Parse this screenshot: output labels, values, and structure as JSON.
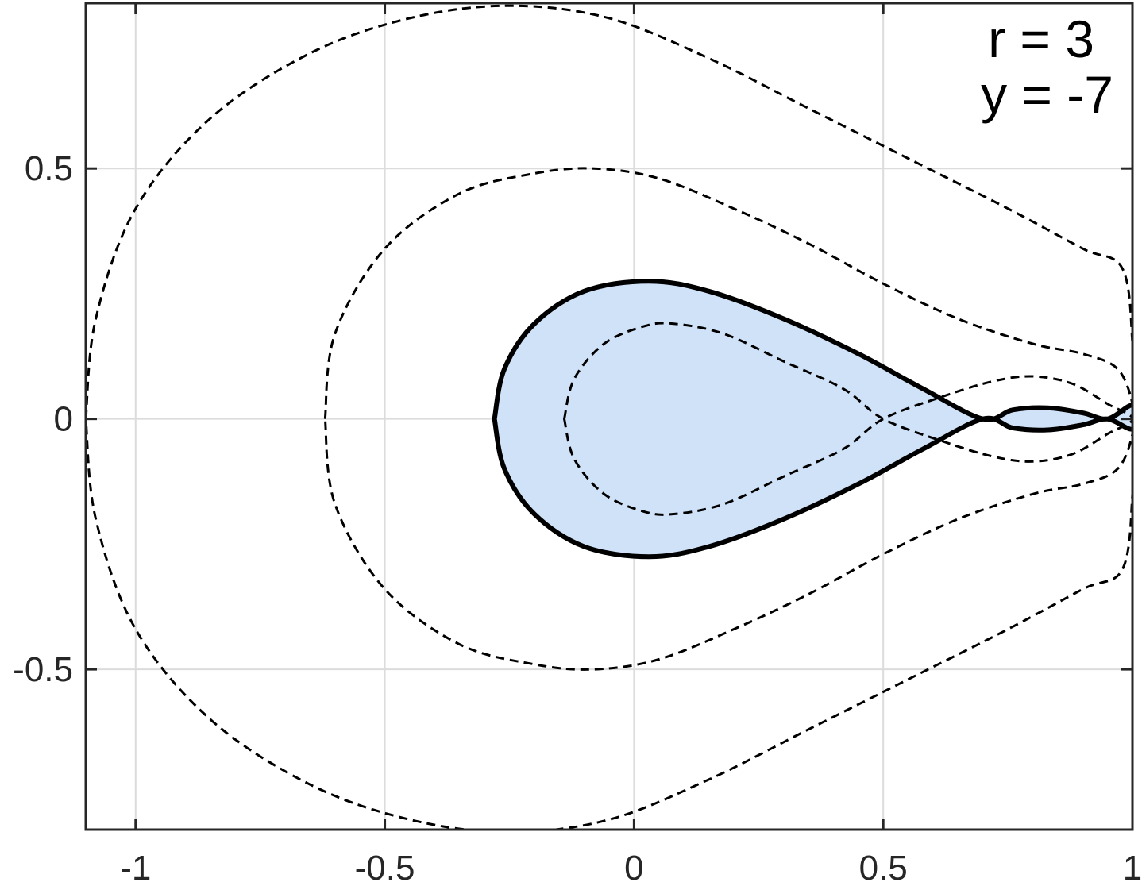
{
  "chart_data": {
    "type": "line",
    "title": "",
    "xlabel": "",
    "ylabel": "",
    "xlim": [
      -1.1,
      1.0
    ],
    "ylim": [
      -0.82,
      0.83
    ],
    "grid": true,
    "x_ticks": [
      -1,
      -0.5,
      0,
      0.5,
      1
    ],
    "x_tick_labels": [
      "-1",
      "-0.5",
      "0",
      "0.5",
      "1"
    ],
    "y_ticks": [
      0.5,
      0,
      -0.5
    ],
    "y_tick_labels": [
      "0.5",
      "0",
      "-0.5"
    ],
    "annotations": [
      "r = 3",
      "y = -7"
    ],
    "colors": {
      "fill": "#cfe2f8",
      "solid_line": "#000000",
      "dashed_line": "#000000",
      "grid": "#dcdcdc",
      "axes": "#262626"
    },
    "series": [
      {
        "style": "solid-filled",
        "points": [
          [
            -0.28,
            0.0
          ],
          [
            -0.26,
            0.1
          ],
          [
            -0.2,
            0.19
          ],
          [
            -0.1,
            0.255
          ],
          [
            0.03,
            0.275
          ],
          [
            0.15,
            0.255
          ],
          [
            0.3,
            0.2
          ],
          [
            0.45,
            0.13
          ],
          [
            0.58,
            0.06
          ],
          [
            0.7,
            0.0
          ],
          [
            0.76,
            0.018
          ],
          [
            0.83,
            0.022
          ],
          [
            0.9,
            0.012
          ],
          [
            0.95,
            0.0
          ],
          [
            1.0,
            0.027
          ],
          [
            1.0,
            -0.02
          ],
          [
            0.95,
            0.0
          ],
          [
            0.9,
            -0.012
          ],
          [
            0.83,
            -0.022
          ],
          [
            0.76,
            -0.018
          ],
          [
            0.7,
            0.0
          ],
          [
            0.58,
            -0.06
          ],
          [
            0.45,
            -0.13
          ],
          [
            0.3,
            -0.2
          ],
          [
            0.15,
            -0.255
          ],
          [
            0.03,
            -0.275
          ],
          [
            -0.1,
            -0.255
          ],
          [
            -0.2,
            -0.19
          ],
          [
            -0.26,
            -0.1
          ],
          [
            -0.28,
            0.0
          ]
        ]
      },
      {
        "style": "dashed",
        "points": [
          [
            -0.14,
            0.0
          ],
          [
            -0.12,
            0.08
          ],
          [
            -0.06,
            0.15
          ],
          [
            0.02,
            0.185
          ],
          [
            0.08,
            0.19
          ],
          [
            0.18,
            0.17
          ],
          [
            0.3,
            0.115
          ],
          [
            0.42,
            0.06
          ],
          [
            0.5,
            0.0
          ],
          [
            0.62,
            -0.045
          ],
          [
            0.72,
            -0.075
          ],
          [
            0.8,
            -0.085
          ],
          [
            0.88,
            -0.07
          ],
          [
            0.95,
            -0.03
          ],
          [
            1.0,
            0.0
          ],
          [
            0.95,
            0.03
          ],
          [
            0.88,
            0.07
          ],
          [
            0.8,
            0.085
          ],
          [
            0.72,
            0.075
          ],
          [
            0.62,
            0.045
          ],
          [
            0.5,
            0.0
          ],
          [
            0.42,
            -0.06
          ],
          [
            0.3,
            -0.115
          ],
          [
            0.18,
            -0.17
          ],
          [
            0.08,
            -0.19
          ],
          [
            0.02,
            -0.185
          ],
          [
            -0.06,
            -0.15
          ],
          [
            -0.12,
            -0.08
          ],
          [
            -0.14,
            0.0
          ]
        ]
      },
      {
        "style": "dashed",
        "points": [
          [
            -0.62,
            0.0
          ],
          [
            -0.6,
            0.17
          ],
          [
            -0.5,
            0.34
          ],
          [
            -0.35,
            0.45
          ],
          [
            -0.2,
            0.49
          ],
          [
            -0.08,
            0.5
          ],
          [
            0.05,
            0.48
          ],
          [
            0.2,
            0.42
          ],
          [
            0.35,
            0.35
          ],
          [
            0.5,
            0.27
          ],
          [
            0.65,
            0.2
          ],
          [
            0.8,
            0.15
          ],
          [
            0.9,
            0.13
          ],
          [
            0.97,
            0.1
          ],
          [
            1.0,
            0.03
          ],
          [
            1.0,
            -0.03
          ],
          [
            0.97,
            -0.1
          ],
          [
            0.9,
            -0.13
          ],
          [
            0.8,
            -0.15
          ],
          [
            0.65,
            -0.2
          ],
          [
            0.5,
            -0.27
          ],
          [
            0.35,
            -0.35
          ],
          [
            0.2,
            -0.42
          ],
          [
            0.05,
            -0.48
          ],
          [
            -0.08,
            -0.5
          ],
          [
            -0.2,
            -0.49
          ],
          [
            -0.35,
            -0.45
          ],
          [
            -0.5,
            -0.34
          ],
          [
            -0.6,
            -0.17
          ],
          [
            -0.62,
            0.0
          ]
        ]
      },
      {
        "style": "dashed",
        "points": [
          [
            -1.1,
            0.0
          ],
          [
            -1.08,
            0.2
          ],
          [
            -1.0,
            0.42
          ],
          [
            -0.85,
            0.6
          ],
          [
            -0.65,
            0.73
          ],
          [
            -0.45,
            0.8
          ],
          [
            -0.25,
            0.825
          ],
          [
            -0.05,
            0.8
          ],
          [
            0.15,
            0.72
          ],
          [
            0.35,
            0.62
          ],
          [
            0.55,
            0.52
          ],
          [
            0.75,
            0.42
          ],
          [
            0.9,
            0.34
          ],
          [
            0.98,
            0.3
          ],
          [
            1.0,
            0.15
          ],
          [
            1.0,
            0.02
          ],
          [
            1.0,
            -0.02
          ],
          [
            1.0,
            -0.15
          ],
          [
            0.98,
            -0.3
          ],
          [
            0.9,
            -0.34
          ],
          [
            0.75,
            -0.42
          ],
          [
            0.55,
            -0.52
          ],
          [
            0.35,
            -0.62
          ],
          [
            0.15,
            -0.72
          ],
          [
            -0.05,
            -0.8
          ],
          [
            -0.25,
            -0.825
          ],
          [
            -0.45,
            -0.8
          ],
          [
            -0.65,
            -0.73
          ],
          [
            -0.85,
            -0.6
          ],
          [
            -1.0,
            -0.42
          ],
          [
            -1.08,
            -0.2
          ],
          [
            -1.1,
            0.0
          ]
        ]
      }
    ]
  }
}
